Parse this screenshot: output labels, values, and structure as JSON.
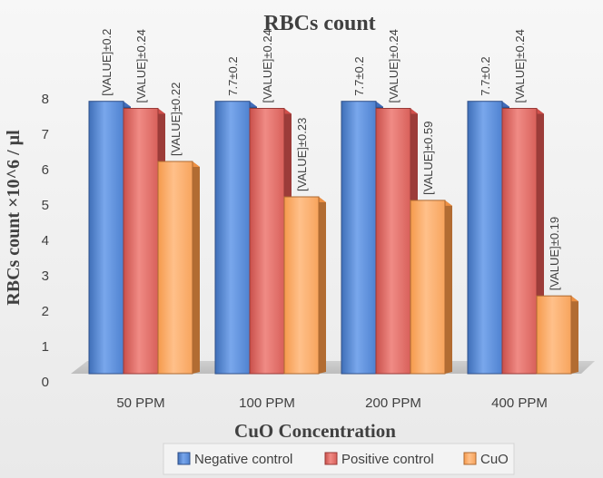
{
  "chart_data": {
    "type": "bar",
    "title": "RBCs count",
    "xlabel": "CuO Concentration",
    "ylabel": "RBCs count ×10^6 / µl",
    "categories": [
      "50 PPM",
      "100 PPM",
      "200 PPM",
      "400 PPM"
    ],
    "ylim": [
      0,
      8
    ],
    "yticks": [
      "0",
      "1",
      "2",
      "3",
      "4",
      "5",
      "6",
      "7",
      "8"
    ],
    "grid": false,
    "legend_position": "bottom",
    "series": [
      {
        "name": "Negative control",
        "color": "#4472c4",
        "values": [
          7.7,
          7.7,
          7.7,
          7.7
        ],
        "labels": [
          "[VALUE]±0.2",
          "7.7±0.2",
          "7.7±0.2",
          "7.7±0.2"
        ]
      },
      {
        "name": "Positive control",
        "color": "#d9534f",
        "values": [
          7.5,
          7.5,
          7.5,
          7.5
        ],
        "labels": [
          "[VALUE]±0.24",
          "[VALUE]±0.24",
          "[VALUE]±0.24",
          "[VALUE]±0.24"
        ]
      },
      {
        "name": "CuO",
        "color": "#f79646",
        "values": [
          6.0,
          5.0,
          4.9,
          2.2
        ],
        "labels": [
          "[VALUE]±0.22",
          "[VALUE]±0.23",
          "[VALUE]±0.59",
          "[VALUE]±0.19"
        ]
      }
    ]
  }
}
